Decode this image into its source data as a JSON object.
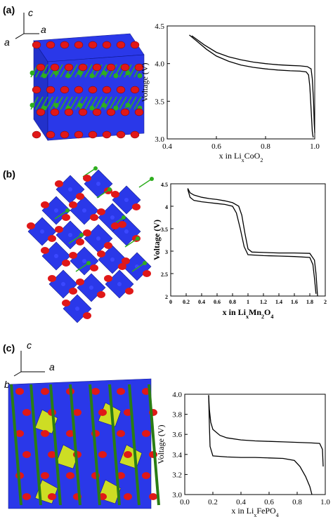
{
  "panels": [
    {
      "label": "(a)",
      "axis_labels": [
        "c",
        "a",
        "a"
      ]
    },
    {
      "label": "(b)"
    },
    {
      "label": "(c)",
      "axis_labels": [
        "c",
        "a",
        "b"
      ]
    }
  ],
  "colors": {
    "octahedron": "#1f2ee8",
    "oxygen": "#e01818",
    "lithium": "#2fae1f",
    "phosphate": "#d6e61a",
    "curve": "#000000"
  },
  "chart_data": [
    {
      "type": "line",
      "xlabel": "x in Li_xCoO_2",
      "xlabel_base": "x in Li",
      "xlabel_sub1": "x",
      "xlabel_mid": "CoO",
      "xlabel_sub2": "2",
      "ylabel": "Voltage (V)",
      "xlim": [
        0.4,
        1.0
      ],
      "ylim": [
        3.0,
        4.5
      ],
      "xticks": [
        "0.4",
        "0.6",
        "0.8",
        "1.0"
      ],
      "yticks": [
        "3.0",
        "3.5",
        "4.0",
        "4.5"
      ],
      "series": [
        {
          "x": [
            0.49,
            0.52,
            0.56,
            0.6,
            0.65,
            0.7,
            0.75,
            0.8,
            0.85,
            0.9,
            0.94,
            0.965,
            0.975,
            0.98,
            0.985,
            0.99,
            0.992,
            0.994
          ],
          "y": [
            4.38,
            4.3,
            4.19,
            4.1,
            4.03,
            3.98,
            3.95,
            3.93,
            3.915,
            3.905,
            3.9,
            3.89,
            3.85,
            3.7,
            3.4,
            3.1,
            3.05,
            3.02
          ]
        },
        {
          "x": [
            0.5,
            0.55,
            0.6,
            0.65,
            0.7,
            0.75,
            0.8,
            0.85,
            0.9,
            0.94,
            0.97,
            0.985,
            0.99,
            0.995,
            0.998,
            1.0
          ],
          "y": [
            4.37,
            4.25,
            4.15,
            4.09,
            4.05,
            4.02,
            4.0,
            3.985,
            3.975,
            3.97,
            3.96,
            3.93,
            3.8,
            3.5,
            3.2,
            3.08
          ]
        }
      ]
    },
    {
      "type": "line",
      "xlabel": "x in Li_xMn_2O_4",
      "xlabel_base": "x in Li",
      "xlabel_sub1": "x",
      "xlabel_mid": "Mn",
      "xlabel_sub2": "2",
      "xlabel_end": "O",
      "xlabel_sub3": "4",
      "ylabel": "Voltage (V)",
      "xlim": [
        0.0,
        2.0
      ],
      "ylim": [
        2.0,
        4.5
      ],
      "xticks": [
        "0",
        "0.2",
        "0.4",
        "0.6",
        "0.8",
        "1",
        "1.2",
        "1.4",
        "1.6",
        "1.8",
        "2"
      ],
      "yticks": [
        "2",
        "2.5",
        "3",
        "3.5",
        "4",
        "4.5"
      ],
      "series": [
        {
          "x": [
            0.22,
            0.25,
            0.3,
            0.4,
            0.5,
            0.6,
            0.7,
            0.8,
            0.88,
            0.92,
            0.96,
            1.0,
            1.05,
            1.2,
            1.4,
            1.6,
            1.8,
            1.86,
            1.88,
            1.9
          ],
          "y": [
            4.4,
            4.3,
            4.25,
            4.2,
            4.17,
            4.15,
            4.12,
            4.08,
            4.0,
            3.8,
            3.4,
            3.05,
            2.98,
            2.97,
            2.96,
            2.96,
            2.95,
            2.8,
            2.5,
            2.0
          ]
        },
        {
          "x": [
            0.22,
            0.25,
            0.3,
            0.4,
            0.5,
            0.6,
            0.7,
            0.8,
            0.85,
            0.9,
            0.95,
            1.0,
            1.2,
            1.4,
            1.6,
            1.8,
            1.84,
            1.86,
            1.88
          ],
          "y": [
            4.38,
            4.2,
            4.13,
            4.1,
            4.08,
            4.06,
            4.04,
            4.0,
            3.85,
            3.5,
            3.1,
            2.92,
            2.9,
            2.89,
            2.88,
            2.86,
            2.7,
            2.4,
            2.05
          ]
        }
      ]
    },
    {
      "type": "line",
      "xlabel": "x in Li_xFePO_4",
      "xlabel_base": "x in Li",
      "xlabel_sub1": "x",
      "xlabel_mid": "FePO",
      "xlabel_sub2": "4",
      "ylabel": "Voltage (V)",
      "xlim": [
        0.0,
        1.0
      ],
      "ylim": [
        3.0,
        4.0
      ],
      "xticks": [
        "0.0",
        "0.2",
        "0.4",
        "0.6",
        "0.8",
        "1.0"
      ],
      "yticks": [
        "3.0",
        "3.2",
        "3.4",
        "3.6",
        "3.8",
        "4.0"
      ],
      "series": [
        {
          "x": [
            0.17,
            0.175,
            0.185,
            0.2,
            0.25,
            0.3,
            0.4,
            0.5,
            0.6,
            0.7,
            0.8,
            0.9,
            0.96,
            0.98,
            0.985
          ],
          "y": [
            3.99,
            3.85,
            3.72,
            3.65,
            3.59,
            3.565,
            3.545,
            3.535,
            3.53,
            3.525,
            3.52,
            3.515,
            3.51,
            3.45,
            3.28
          ]
        },
        {
          "x": [
            0.17,
            0.175,
            0.18,
            0.2,
            0.3,
            0.4,
            0.5,
            0.6,
            0.7,
            0.78,
            0.82,
            0.86,
            0.89,
            0.905
          ],
          "y": [
            3.99,
            3.7,
            3.48,
            3.385,
            3.375,
            3.37,
            3.37,
            3.365,
            3.36,
            3.34,
            3.28,
            3.18,
            3.08,
            3.0
          ]
        }
      ]
    }
  ]
}
